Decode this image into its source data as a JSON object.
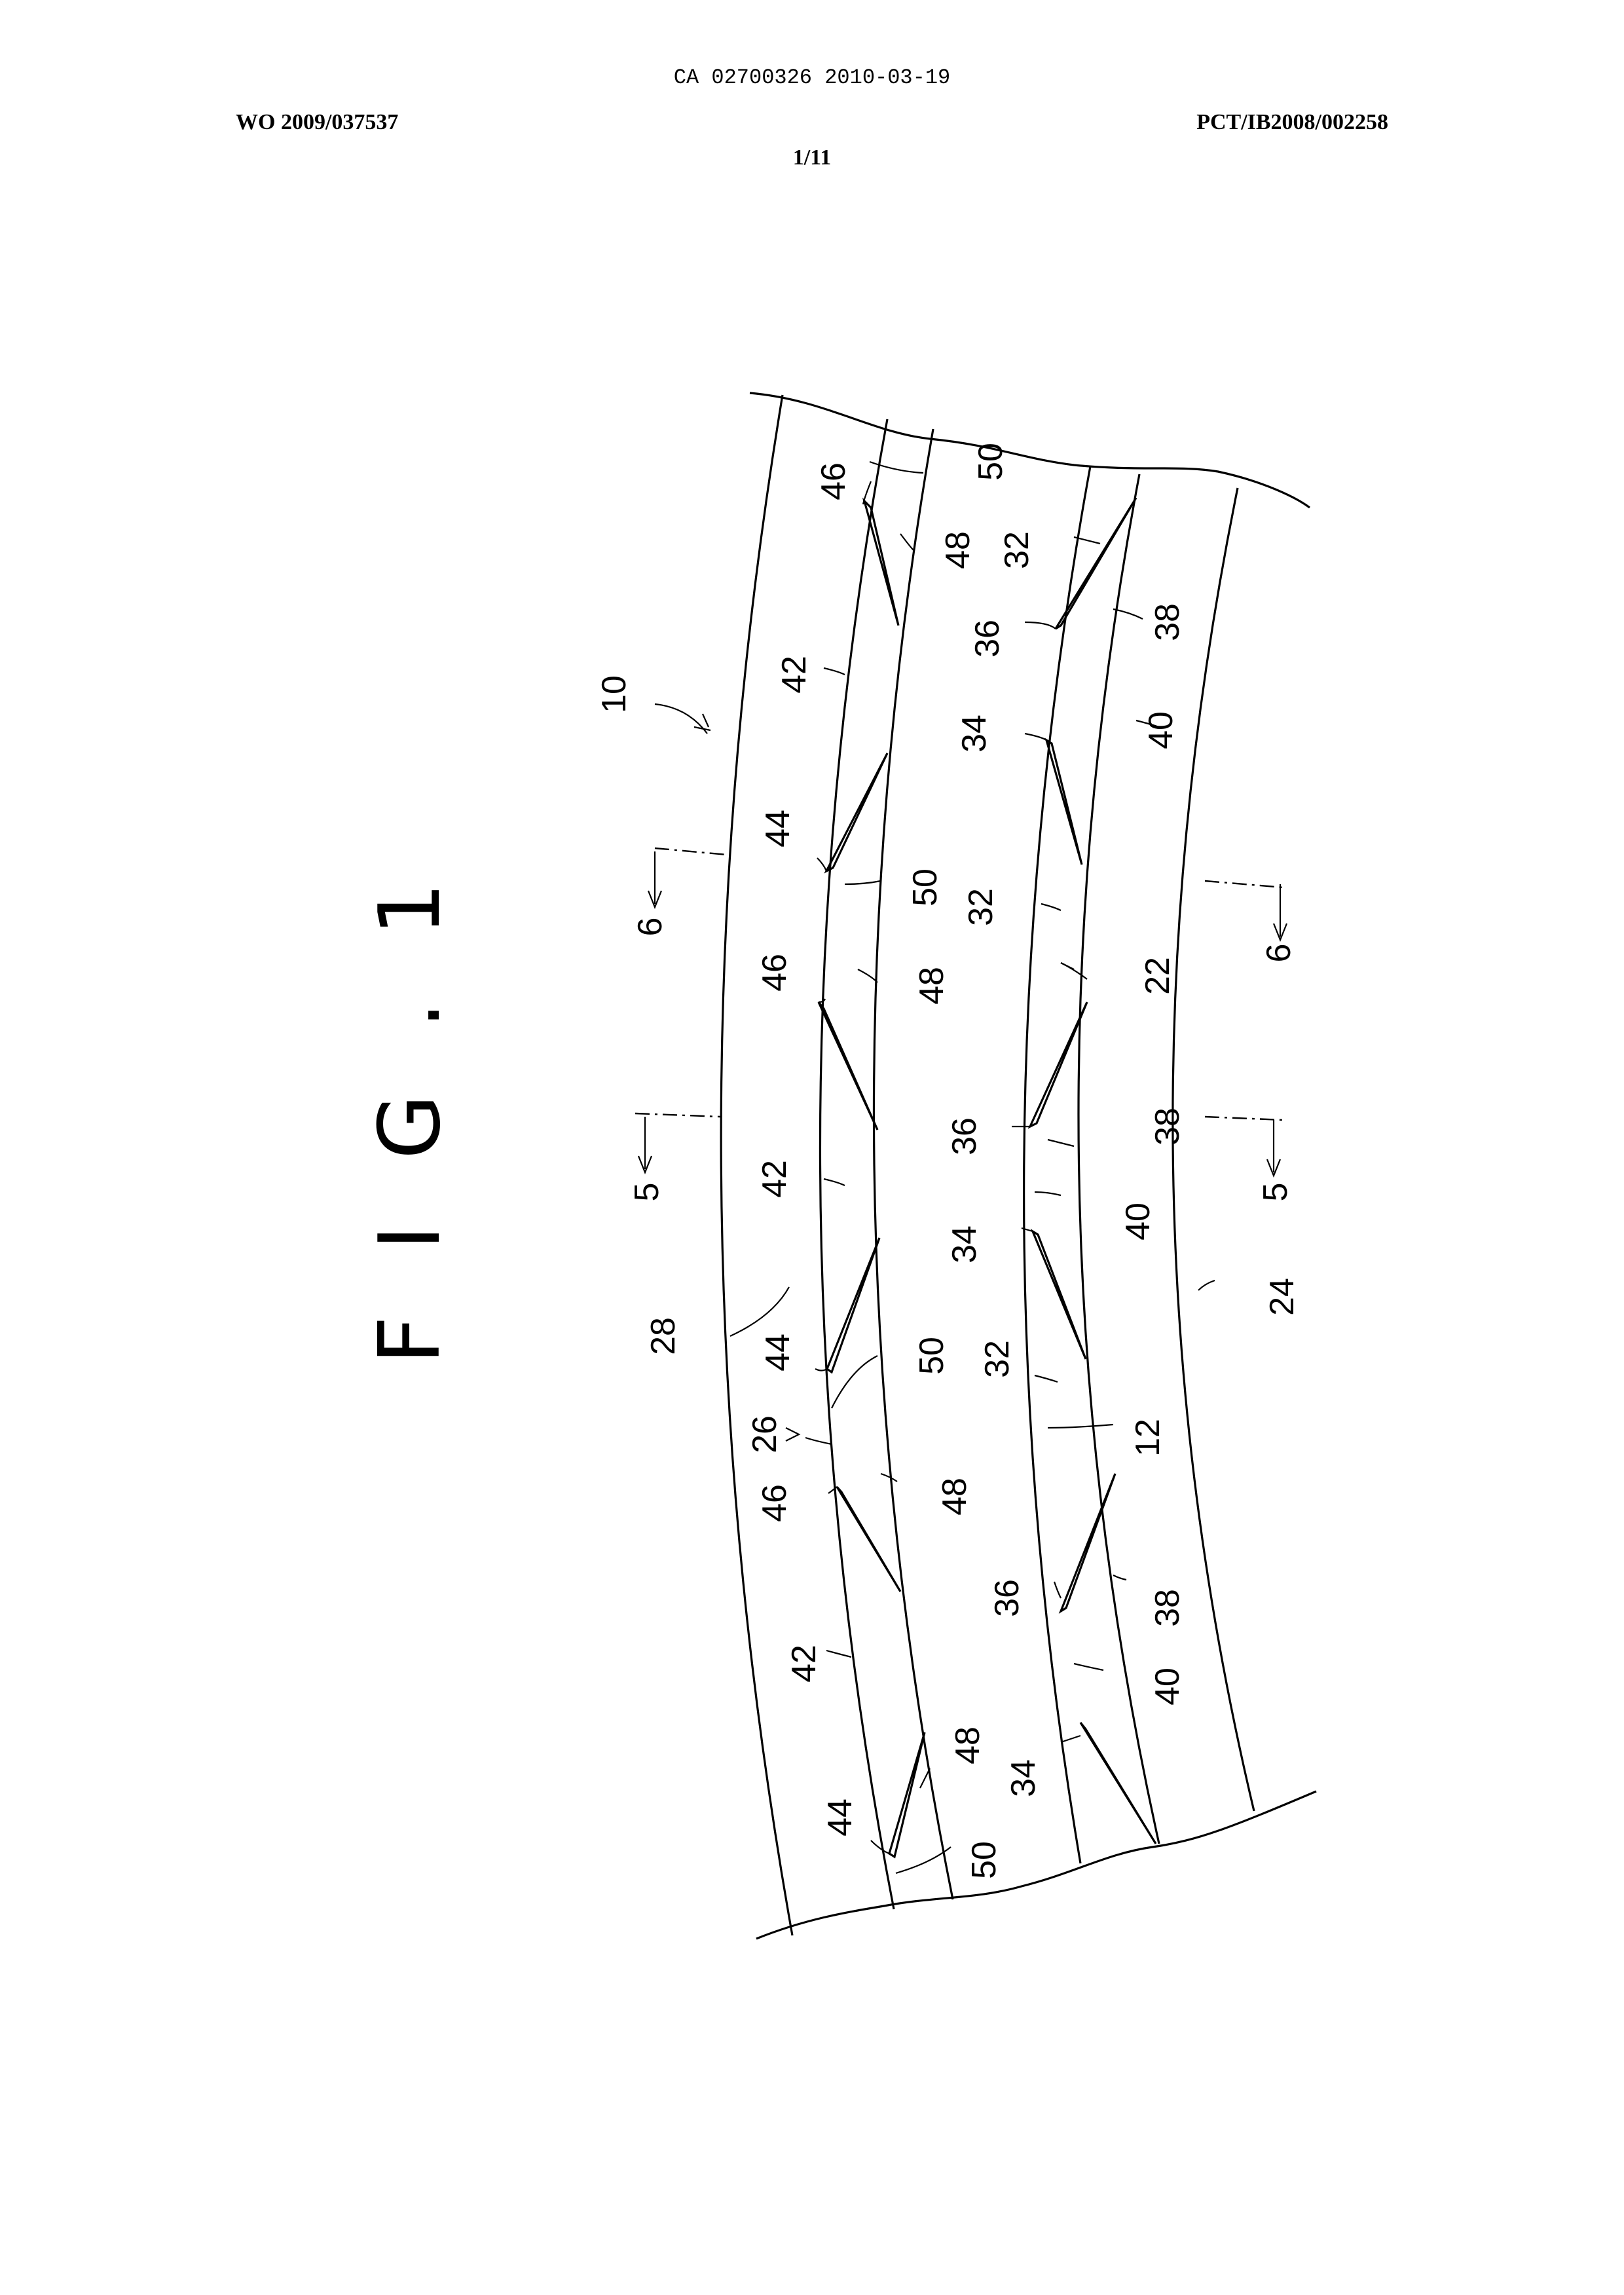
{
  "header": {
    "ca_number": "CA 02700326 2010-03-19",
    "wo_number": "WO 2009/037537",
    "pct_number": "PCT/IB2008/002258",
    "sheet": "1/11"
  },
  "figure": {
    "title": "F I G . 1",
    "reference_numerals": [
      "10",
      "12",
      "22",
      "24",
      "26",
      "28",
      "32",
      "34",
      "36",
      "38",
      "40",
      "42",
      "44",
      "46",
      "48",
      "50"
    ],
    "section_marks": [
      "5",
      "6"
    ],
    "labels": {
      "l10": "10",
      "l28": "28",
      "l24": "24",
      "l22": "22",
      "l26": "26",
      "l12": "12",
      "l46a": "46",
      "l50a": "50",
      "l48a": "48",
      "l32a": "32",
      "l36a": "36",
      "l38a": "38",
      "l42a": "42",
      "l34a": "34",
      "l40a": "40",
      "l44a": "44",
      "l6a": "6",
      "l50b": "50",
      "l32b": "32",
      "l6b": "6",
      "l46b": "46",
      "l48b": "48",
      "l22b": "22",
      "l36b": "36",
      "l38b": "38",
      "l5a": "5",
      "l42b": "42",
      "l5b": "5",
      "l40b": "40",
      "l34b": "34",
      "l44b": "44",
      "l50c": "50",
      "l32c": "32",
      "l46c": "46",
      "l48c": "48",
      "l36c": "36",
      "l38c": "38",
      "l42c": "42",
      "l40c": "40",
      "l48d": "48",
      "l34c": "34",
      "l44c": "44",
      "l50d": "50"
    }
  }
}
